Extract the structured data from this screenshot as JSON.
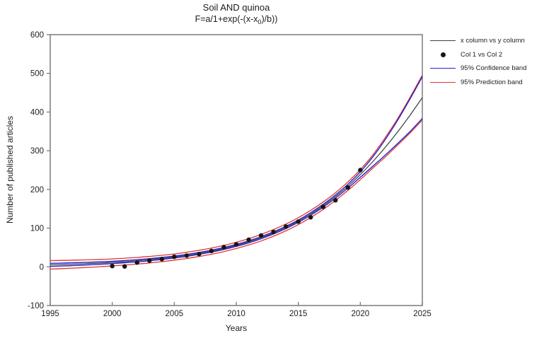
{
  "figure": {
    "title": "Soil AND quinoa",
    "subtitle_prefix": "F=a/1+exp(-(x-x",
    "subtitle_sub": "0",
    "subtitle_suffix": ")/b))",
    "x_axis_label": "Years",
    "y_axis_label": "Number of published articles"
  },
  "legend": {
    "position": "outside-top-right",
    "items": [
      {
        "label": "x column vs y column",
        "marker": "line",
        "color": "#3c3c3c"
      },
      {
        "label": "Col 1 vs Col 2",
        "marker": "dot",
        "color": "#161616"
      },
      {
        "label": "95% Confidence band",
        "marker": "line",
        "color": "#2323cb"
      },
      {
        "label": "95% Prediction band",
        "marker": "line",
        "color": "#e23333"
      }
    ]
  },
  "chart_data": {
    "type": "scatter",
    "title": "Soil AND quinoa",
    "subtitle": "F=a/1+exp(-(x-x0)/b))",
    "xlabel": "Years",
    "ylabel": "Number of published articles",
    "xlim": [
      1995,
      2025
    ],
    "ylim": [
      -100,
      600
    ],
    "x_ticks": [
      1995,
      2000,
      2005,
      2010,
      2015,
      2020,
      2025
    ],
    "y_ticks": [
      -100,
      0,
      100,
      200,
      300,
      400,
      500,
      600
    ],
    "grid": false,
    "legend_position": "outside-top-right",
    "scatter": {
      "name": "Col 1 vs Col 2",
      "x": [
        2000,
        2001,
        2002,
        2003,
        2004,
        2005,
        2006,
        2007,
        2008,
        2009,
        2010,
        2011,
        2012,
        2013,
        2014,
        2015,
        2016,
        2017,
        2018,
        2019,
        2020
      ],
      "y": [
        2,
        1,
        11,
        16,
        20,
        26,
        29,
        33,
        41,
        51,
        58,
        70,
        81,
        90,
        104,
        117,
        128,
        155,
        172,
        205,
        250
      ]
    },
    "fit_line": {
      "name": "x column vs y column",
      "x": [
        1995,
        1996,
        1997,
        1998,
        1999,
        2000,
        2001,
        2002,
        2003,
        2004,
        2005,
        2006,
        2007,
        2008,
        2009,
        2010,
        2011,
        2012,
        2013,
        2014,
        2015,
        2016,
        2017,
        2018,
        2019,
        2020,
        2021,
        2022,
        2023,
        2024,
        2025
      ],
      "y": [
        5.1,
        6.0,
        7.1,
        8.3,
        9.7,
        11.4,
        13.4,
        15.7,
        18.4,
        21.6,
        25.3,
        29.6,
        34.7,
        40.5,
        47.4,
        55.4,
        64.6,
        75.3,
        87.7,
        101.8,
        118.0,
        136.7,
        157.7,
        181.6,
        208.4,
        238.4,
        271.7,
        308.4,
        348.3,
        391.5,
        437.4
      ]
    },
    "confidence_band": {
      "name": "95% Confidence band",
      "half_width": [
        4.0,
        3.8,
        3.6,
        3.4,
        3.2,
        3.0,
        2.9,
        2.8,
        2.7,
        2.6,
        2.5,
        2.5,
        2.5,
        2.5,
        2.5,
        2.5,
        2.6,
        2.7,
        2.8,
        2.9,
        3.0,
        3.3,
        3.6,
        4.0,
        5.0,
        7.0,
        12.0,
        20.0,
        30.0,
        42.0,
        54.0
      ]
    },
    "prediction_band": {
      "name": "95% Prediction band",
      "half_width": [
        11.0,
        10.6,
        10.2,
        9.8,
        9.4,
        9.0,
        8.8,
        8.6,
        8.4,
        8.2,
        8.0,
        8.0,
        8.0,
        8.0,
        8.0,
        8.0,
        8.2,
        8.4,
        8.6,
        8.8,
        9.0,
        9.3,
        9.6,
        10.0,
        11.0,
        13.0,
        17.0,
        25.0,
        34.0,
        46.0,
        58.0
      ]
    },
    "colors": {
      "fit_line": "#3c3c3c",
      "scatter": "#161616",
      "confidence": "#2323cb",
      "prediction": "#e23333",
      "frame": "#7a7a7a",
      "text": "#1d1d1d"
    }
  }
}
